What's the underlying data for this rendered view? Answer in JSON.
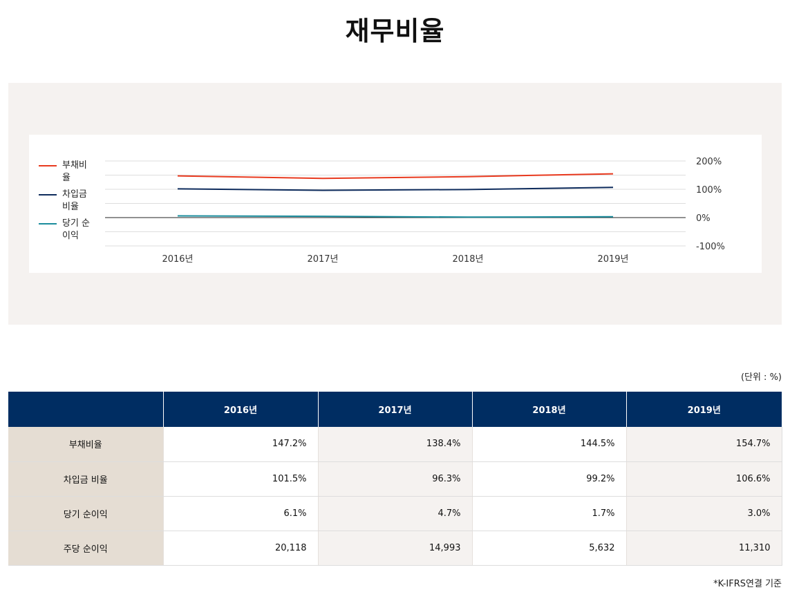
{
  "page": {
    "title": "재무비율",
    "unit_note": "(단위 : %)",
    "footnote": "*K-IFRS연결 기준"
  },
  "chart_data": {
    "type": "line",
    "categories": [
      "2016년",
      "2017년",
      "2018년",
      "2019년"
    ],
    "series": [
      {
        "name": "부채비율",
        "values": [
          147.2,
          138.4,
          144.5,
          154.7
        ],
        "color": "#e8391e"
      },
      {
        "name": "차입금 비율",
        "values": [
          101.5,
          96.3,
          99.2,
          106.6
        ],
        "color": "#0d2b5c"
      },
      {
        "name": "당기 순이익",
        "values": [
          6.1,
          4.7,
          1.7,
          3.0
        ],
        "color": "#1a8c9c"
      }
    ],
    "yticks": [
      "200%",
      "100%",
      "0%",
      "-100%"
    ],
    "ylim": [
      -100,
      200
    ],
    "grid": true,
    "legend_position": "left"
  },
  "table": {
    "headers": [
      "",
      "2016년",
      "2017년",
      "2018년",
      "2019년"
    ],
    "rows": [
      {
        "label": "부채비율",
        "values": [
          "147.2%",
          "138.4%",
          "144.5%",
          "154.7%"
        ]
      },
      {
        "label": "차입금 비율",
        "values": [
          "101.5%",
          "96.3%",
          "99.2%",
          "106.6%"
        ]
      },
      {
        "label": "당기 순이익",
        "values": [
          "6.1%",
          "4.7%",
          "1.7%",
          "3.0%"
        ]
      },
      {
        "label": "주당 순이익",
        "values": [
          "20,118",
          "14,993",
          "5,632",
          "11,310"
        ]
      }
    ]
  }
}
